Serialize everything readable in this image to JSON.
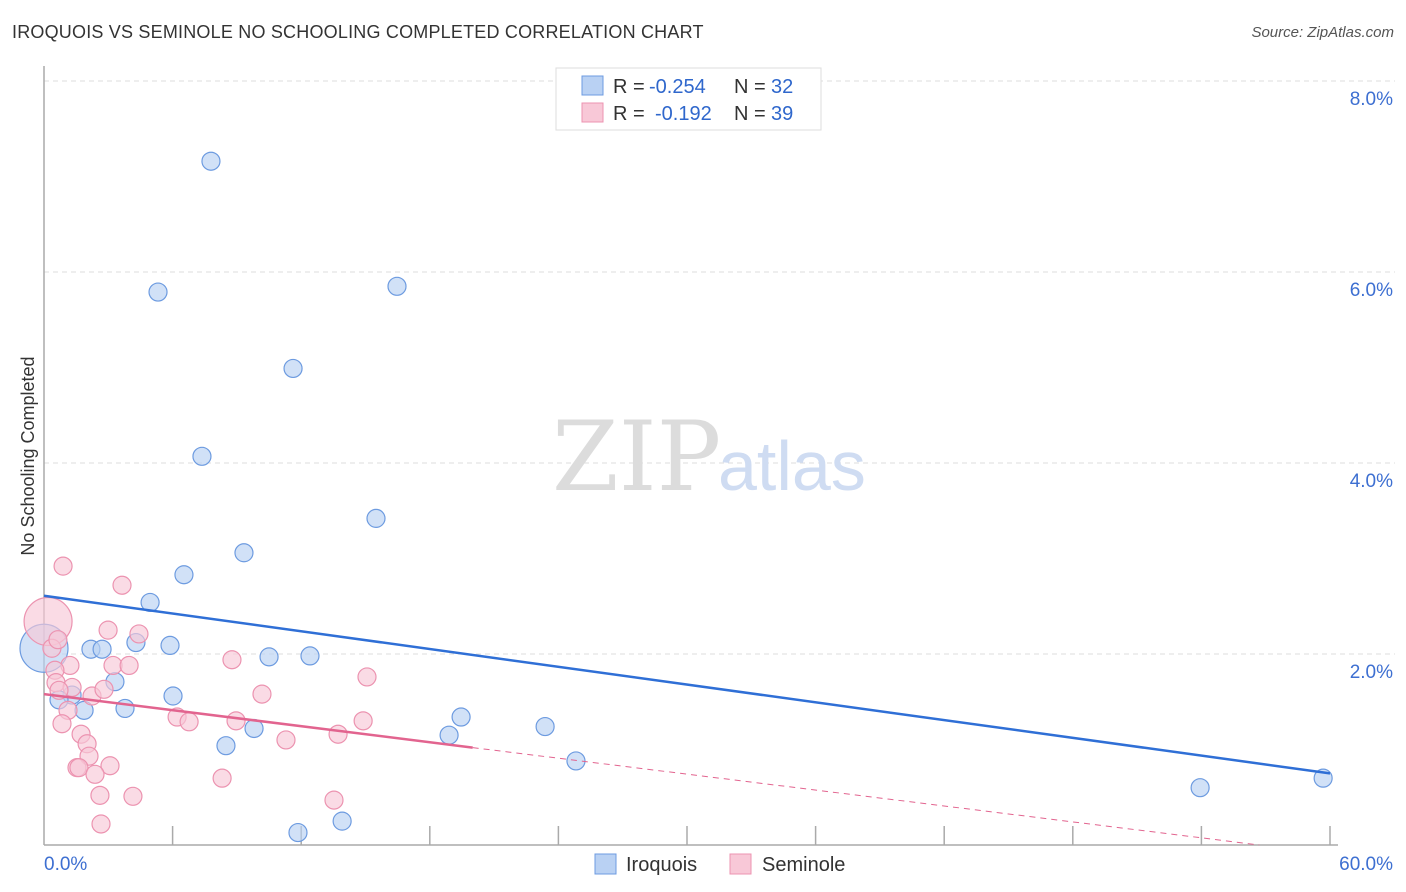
{
  "title": "IROQUOIS VS SEMINOLE NO SCHOOLING COMPLETED CORRELATION CHART",
  "source": "Source: ZipAtlas.com",
  "watermark": {
    "zip": "ZIP",
    "atlas": "atlas"
  },
  "chart_data": {
    "type": "scatter",
    "title": "IROQUOIS VS SEMINOLE NO SCHOOLING COMPLETED CORRELATION CHART",
    "xlabel": "",
    "ylabel": "No Schooling Completed",
    "xlim": [
      0,
      60
    ],
    "ylim": [
      0,
      8
    ],
    "x_tick_labels": [
      "0.0%",
      "60.0%"
    ],
    "x_tick_values": [
      0,
      6,
      12,
      18,
      24,
      30,
      36,
      42,
      48,
      54,
      60
    ],
    "y_ticks": [
      {
        "value": 2,
        "label": "2.0%"
      },
      {
        "value": 4,
        "label": "4.0%"
      },
      {
        "value": 6,
        "label": "6.0%"
      },
      {
        "value": 8,
        "label": "8.0%"
      }
    ],
    "grid": true,
    "legend_position": "top-center",
    "legend": [
      {
        "name": "Iroquois",
        "r_label": "R = ",
        "r": "-0.254",
        "n_label": "N = ",
        "n": "32"
      },
      {
        "name": "Seminole",
        "r_label": "R = ",
        "r": "-0.192",
        "n_label": "N = ",
        "n": "39"
      }
    ],
    "series": [
      {
        "name": "Iroquois",
        "color": "#6d9be0",
        "fill": "#b9d1f3",
        "line_color": "#2f6fd6",
        "trend": {
          "x0": 0,
          "y0": 2.61,
          "x1": 60,
          "y1": 0.75
        },
        "points": [
          [
            7.79,
            7.16
          ],
          [
            5.32,
            5.79
          ],
          [
            16.47,
            5.85
          ],
          [
            11.62,
            4.99
          ],
          [
            7.37,
            4.07
          ],
          [
            15.49,
            3.42
          ],
          [
            9.33,
            3.06
          ],
          [
            6.53,
            2.83
          ],
          [
            4.95,
            2.54
          ],
          [
            5.88,
            2.09
          ],
          [
            4.29,
            2.12
          ],
          [
            2.19,
            2.05
          ],
          [
            2.71,
            2.05
          ],
          [
            0.0,
            2.06,
            "large"
          ],
          [
            10.5,
            1.97
          ],
          [
            12.41,
            1.98
          ],
          [
            3.31,
            1.71
          ],
          [
            1.31,
            1.57
          ],
          [
            6.02,
            1.56
          ],
          [
            0.7,
            1.52
          ],
          [
            1.87,
            1.41
          ],
          [
            3.78,
            1.43
          ],
          [
            9.8,
            1.22
          ],
          [
            8.49,
            1.04
          ],
          [
            19.46,
            1.34
          ],
          [
            18.9,
            1.15
          ],
          [
            23.38,
            1.24
          ],
          [
            24.82,
            0.88
          ],
          [
            53.94,
            0.6
          ],
          [
            59.68,
            0.7
          ],
          [
            11.85,
            0.13
          ],
          [
            13.91,
            0.25
          ]
        ]
      },
      {
        "name": "Seminole",
        "color": "#ec93b0",
        "fill": "#f8c8d7",
        "line_color": "#e2648f",
        "trend": {
          "x0": 0,
          "y0": 1.58,
          "x1": 20,
          "y1": 1.02,
          "dash_to_x": 56.7,
          "dash_to_y": 0
        },
        "points": [
          [
            0.89,
            2.92
          ],
          [
            3.64,
            2.72
          ],
          [
            0.19,
            2.34,
            "large"
          ],
          [
            2.99,
            2.25
          ],
          [
            4.43,
            2.21
          ],
          [
            0.37,
            2.06
          ],
          [
            1.21,
            1.88
          ],
          [
            3.22,
            1.88
          ],
          [
            3.97,
            1.88
          ],
          [
            8.77,
            1.94
          ],
          [
            15.07,
            1.76
          ],
          [
            0.51,
            1.83
          ],
          [
            0.56,
            1.7
          ],
          [
            1.31,
            1.65
          ],
          [
            2.24,
            1.56
          ],
          [
            2.8,
            1.63
          ],
          [
            0.7,
            1.62
          ],
          [
            10.17,
            1.58
          ],
          [
            1.12,
            1.41
          ],
          [
            6.21,
            1.34
          ],
          [
            6.77,
            1.29
          ],
          [
            8.96,
            1.3
          ],
          [
            14.89,
            1.3
          ],
          [
            0.84,
            1.27
          ],
          [
            1.73,
            1.16
          ],
          [
            2.01,
            1.06
          ],
          [
            2.1,
            0.93
          ],
          [
            11.29,
            1.1
          ],
          [
            13.72,
            1.16
          ],
          [
            3.08,
            0.83
          ],
          [
            1.54,
            0.81
          ],
          [
            1.63,
            0.81
          ],
          [
            2.38,
            0.74
          ],
          [
            8.31,
            0.7
          ],
          [
            2.61,
            0.52
          ],
          [
            4.15,
            0.51
          ],
          [
            13.53,
            0.47
          ],
          [
            2.66,
            0.22
          ],
          [
            0.65,
            2.15
          ]
        ]
      }
    ]
  }
}
